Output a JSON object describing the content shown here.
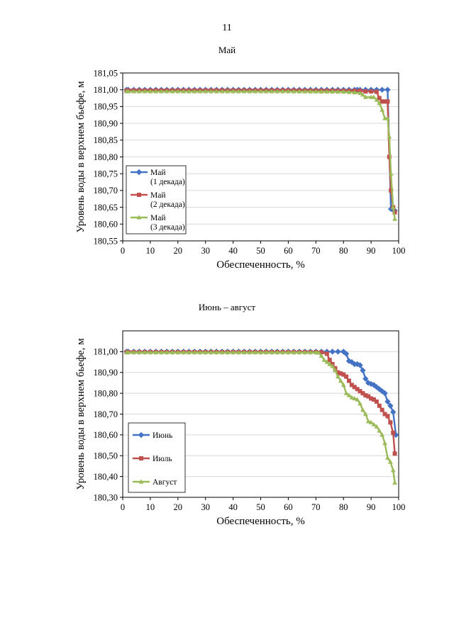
{
  "page": {
    "number": "11"
  },
  "chart_data": [
    {
      "type": "line",
      "title": "Май",
      "xlabel": "Обеспеченность, %",
      "ylabel": "Уровень воды в верхнем бьефе, м",
      "xlim": [
        0,
        100
      ],
      "ylim": [
        180.55,
        181.05
      ],
      "xticks": [
        0,
        10,
        20,
        30,
        40,
        50,
        60,
        70,
        80,
        90,
        100
      ],
      "xtick_labels": [
        "0",
        "10",
        "20",
        "30",
        "40",
        "50",
        "60",
        "70",
        "80",
        "90",
        "100"
      ],
      "yticks": [
        180.55,
        180.6,
        180.65,
        180.7,
        180.75,
        180.8,
        180.85,
        180.9,
        180.95,
        181.0,
        181.05
      ],
      "ytick_labels": [
        "180,55",
        "180,60",
        "180,65",
        "180,70",
        "180,75",
        "180,80",
        "180,85",
        "180,90",
        "180,95",
        "181,00",
        "181,05"
      ],
      "grid": true,
      "legend_position": "bottom-left",
      "series": [
        {
          "name": "Май (1 декада)",
          "legend_lines": [
            "Май",
            "(1 декада)"
          ],
          "color": "#4472c4",
          "marker": "diamond",
          "points": [
            [
              1.4,
              181.0
            ],
            [
              10,
              181.0
            ],
            [
              20,
              181.0
            ],
            [
              30,
              181.0
            ],
            [
              40,
              181.0
            ],
            [
              50,
              181.0
            ],
            [
              60,
              181.0
            ],
            [
              70,
              181.0
            ],
            [
              80,
              181.0
            ],
            [
              85,
              181.0
            ],
            [
              90,
              181.0
            ],
            [
              92,
              181.0
            ],
            [
              94,
              181.0
            ],
            [
              96,
              181.0
            ],
            [
              97.2,
              180.645
            ],
            [
              98.6,
              180.64
            ]
          ]
        },
        {
          "name": "Май (2 декада)",
          "legend_lines": [
            "Май",
            "(2 декада)"
          ],
          "color": "#c0504d",
          "marker": "square",
          "points": [
            [
              1.4,
              180.998
            ],
            [
              20,
              180.998
            ],
            [
              40,
              180.998
            ],
            [
              60,
              180.998
            ],
            [
              80,
              180.997
            ],
            [
              86,
              180.997
            ],
            [
              88,
              180.995
            ],
            [
              90,
              180.995
            ],
            [
              92,
              180.994
            ],
            [
              93,
              180.975
            ],
            [
              94,
              180.965
            ],
            [
              95,
              180.965
            ],
            [
              96,
              180.965
            ],
            [
              96.6,
              180.8
            ],
            [
              97.2,
              180.7
            ],
            [
              98,
              180.65
            ],
            [
              98.6,
              180.635
            ]
          ]
        },
        {
          "name": "Май (3 декада)",
          "legend_lines": [
            "Май",
            "(3 декада)"
          ],
          "color": "#9bbb59",
          "marker": "triangle",
          "points": [
            [
              1.4,
              180.995
            ],
            [
              20,
              180.995
            ],
            [
              40,
              180.995
            ],
            [
              60,
              180.995
            ],
            [
              80,
              180.994
            ],
            [
              84,
              180.992
            ],
            [
              86,
              180.99
            ],
            [
              87,
              180.985
            ],
            [
              88,
              180.978
            ],
            [
              90,
              180.978
            ],
            [
              91,
              180.978
            ],
            [
              92,
              180.97
            ],
            [
              93,
              180.96
            ],
            [
              94,
              180.94
            ],
            [
              95,
              180.915
            ],
            [
              96,
              180.915
            ],
            [
              96.6,
              180.86
            ],
            [
              97.2,
              180.75
            ],
            [
              98,
              180.65
            ],
            [
              98.6,
              180.615
            ]
          ]
        }
      ]
    },
    {
      "type": "line",
      "title": "Июнь – август",
      "xlabel": "Обеспеченность, %",
      "ylabel": "Уровень воды в верхнем бьефе, м",
      "xlim": [
        0,
        100
      ],
      "ylim": [
        180.3,
        181.1
      ],
      "xticks": [
        0,
        10,
        20,
        30,
        40,
        50,
        60,
        70,
        80,
        90,
        100
      ],
      "xtick_labels": [
        "0",
        "10",
        "20",
        "30",
        "40",
        "50",
        "60",
        "70",
        "80",
        "90",
        "100"
      ],
      "yticks": [
        180.3,
        180.4,
        180.5,
        180.6,
        180.7,
        180.8,
        180.9,
        181.0
      ],
      "ytick_labels": [
        "180,30",
        "180,40",
        "180,50",
        "180,60",
        "180,70",
        "180,80",
        "180,90",
        "181,00"
      ],
      "grid": true,
      "legend_position": "bottom-left",
      "series": [
        {
          "name": "Июнь",
          "legend_lines": [
            "Июнь"
          ],
          "color": "#4472c4",
          "marker": "diamond",
          "points": [
            [
              1.4,
              181.0
            ],
            [
              20,
              181.0
            ],
            [
              40,
              181.0
            ],
            [
              60,
              181.0
            ],
            [
              70,
              181.0
            ],
            [
              74,
              181.0
            ],
            [
              76,
              181.0
            ],
            [
              78,
              181.0
            ],
            [
              80,
              181.0
            ],
            [
              81,
              180.99
            ],
            [
              82,
              180.955
            ],
            [
              83,
              180.95
            ],
            [
              84,
              180.94
            ],
            [
              85,
              180.94
            ],
            [
              86,
              180.935
            ],
            [
              87,
              180.91
            ],
            [
              88,
              180.87
            ],
            [
              89,
              180.85
            ],
            [
              90,
              180.845
            ],
            [
              91,
              180.84
            ],
            [
              92,
              180.83
            ],
            [
              93,
              180.82
            ],
            [
              94,
              180.81
            ],
            [
              95,
              180.8
            ],
            [
              96,
              180.76
            ],
            [
              97,
              180.74
            ],
            [
              98,
              180.71
            ],
            [
              99,
              180.6
            ]
          ]
        },
        {
          "name": "Июль",
          "legend_lines": [
            "Июль"
          ],
          "color": "#c0504d",
          "marker": "square",
          "points": [
            [
              1.4,
              180.998
            ],
            [
              20,
              180.998
            ],
            [
              40,
              180.998
            ],
            [
              60,
              180.998
            ],
            [
              70,
              180.998
            ],
            [
              72,
              180.997
            ],
            [
              74,
              180.99
            ],
            [
              75,
              180.96
            ],
            [
              76,
              180.94
            ],
            [
              77,
              180.92
            ],
            [
              78,
              180.9
            ],
            [
              79,
              180.895
            ],
            [
              80,
              180.89
            ],
            [
              81,
              180.88
            ],
            [
              82,
              180.86
            ],
            [
              83,
              180.84
            ],
            [
              84,
              180.83
            ],
            [
              85,
              180.82
            ],
            [
              86,
              180.81
            ],
            [
              87,
              180.8
            ],
            [
              88,
              180.79
            ],
            [
              89,
              180.785
            ],
            [
              90,
              180.775
            ],
            [
              91,
              180.77
            ],
            [
              92,
              180.76
            ],
            [
              93,
              180.74
            ],
            [
              94,
              180.72
            ],
            [
              95,
              180.7
            ],
            [
              96,
              180.69
            ],
            [
              97,
              180.66
            ],
            [
              98,
              180.61
            ],
            [
              98.6,
              180.51
            ]
          ]
        },
        {
          "name": "Август",
          "legend_lines": [
            "Август"
          ],
          "color": "#9bbb59",
          "marker": "triangle",
          "points": [
            [
              1.4,
              180.996
            ],
            [
              20,
              180.996
            ],
            [
              40,
              180.996
            ],
            [
              60,
              180.996
            ],
            [
              70,
              180.996
            ],
            [
              71,
              180.995
            ],
            [
              72,
              180.98
            ],
            [
              73,
              180.96
            ],
            [
              74,
              180.95
            ],
            [
              75,
              180.94
            ],
            [
              76,
              180.93
            ],
            [
              77,
              180.91
            ],
            [
              78,
              180.88
            ],
            [
              79,
              180.86
            ],
            [
              80,
              180.84
            ],
            [
              81,
              180.8
            ],
            [
              82,
              180.79
            ],
            [
              83,
              180.78
            ],
            [
              84,
              180.775
            ],
            [
              85,
              180.77
            ],
            [
              86,
              180.75
            ],
            [
              87,
              180.72
            ],
            [
              88,
              180.7
            ],
            [
              89,
              180.665
            ],
            [
              90,
              180.66
            ],
            [
              91,
              180.65
            ],
            [
              92,
              180.64
            ],
            [
              93,
              180.62
            ],
            [
              94,
              180.6
            ],
            [
              95,
              180.56
            ],
            [
              96,
              180.49
            ],
            [
              97,
              180.47
            ],
            [
              98,
              180.43
            ],
            [
              98.6,
              180.37
            ]
          ]
        }
      ]
    }
  ]
}
